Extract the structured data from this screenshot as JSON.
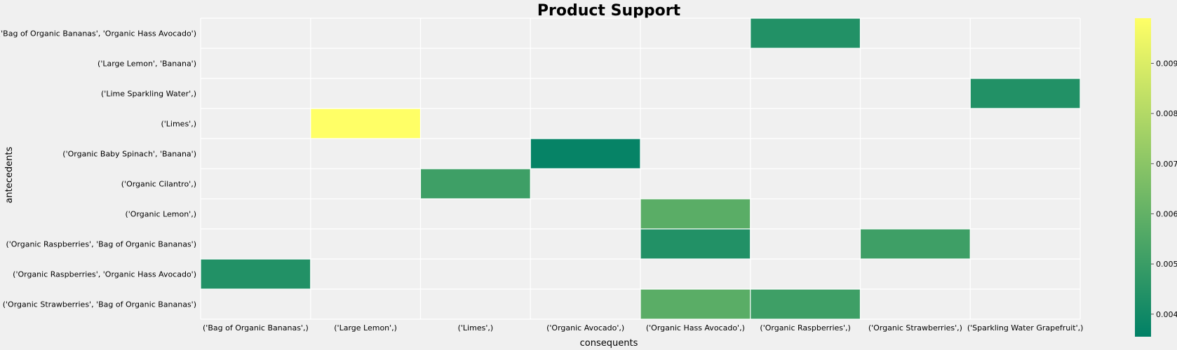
{
  "chart_data": {
    "type": "heatmap",
    "title": "Product Support",
    "xlabel": "consequents",
    "ylabel": "antecedents",
    "x_categories": [
      "('Bag of Organic Bananas',)",
      "('Large Lemon',)",
      "('Limes',)",
      "('Organic Avocado',)",
      "('Organic Hass Avocado',)",
      "('Organic Raspberries',)",
      "('Organic Strawberries',)",
      "('Sparkling Water Grapefruit',)"
    ],
    "y_categories": [
      "('Bag of Organic Bananas', 'Organic Hass Avocado')",
      "('Large Lemon', 'Banana')",
      "('Lime Sparkling Water',)",
      "('Limes',)",
      "('Organic Baby Spinach', 'Banana')",
      "('Organic Cilantro',)",
      "('Organic Lemon',)",
      "('Organic Raspberries', 'Bag of Organic Bananas')",
      "('Organic Raspberries', 'Organic Hass Avocado')",
      "('Organic Strawberries', 'Bag of Organic Bananas')"
    ],
    "values": [
      [
        null,
        null,
        null,
        null,
        null,
        0.0044,
        null,
        null
      ],
      [
        null,
        null,
        null,
        null,
        null,
        null,
        null,
        null
      ],
      [
        null,
        null,
        null,
        null,
        null,
        null,
        null,
        0.0044
      ],
      [
        null,
        0.0099,
        null,
        null,
        null,
        null,
        null,
        null
      ],
      [
        null,
        null,
        null,
        0.0037,
        null,
        null,
        null,
        null
      ],
      [
        null,
        null,
        0.0051,
        null,
        null,
        null,
        null,
        null
      ],
      [
        null,
        null,
        null,
        null,
        0.0058,
        null,
        null,
        null
      ],
      [
        null,
        null,
        null,
        null,
        0.0044,
        null,
        0.0051,
        null
      ],
      [
        0.0044,
        null,
        null,
        null,
        null,
        null,
        null,
        null
      ],
      [
        null,
        null,
        null,
        null,
        0.0058,
        0.0051,
        null,
        null
      ]
    ],
    "colorbar": {
      "min": 0.00355,
      "max": 0.0099,
      "ticks": [
        0.004,
        0.005,
        0.006,
        0.007,
        0.008,
        0.009
      ],
      "tick_labels": [
        "0.004",
        "0.005",
        "0.006",
        "0.007",
        "0.008",
        "0.009"
      ],
      "colormap": "summer"
    },
    "background_color": "#f0f0f0",
    "gridline_color": "#ffffff"
  }
}
